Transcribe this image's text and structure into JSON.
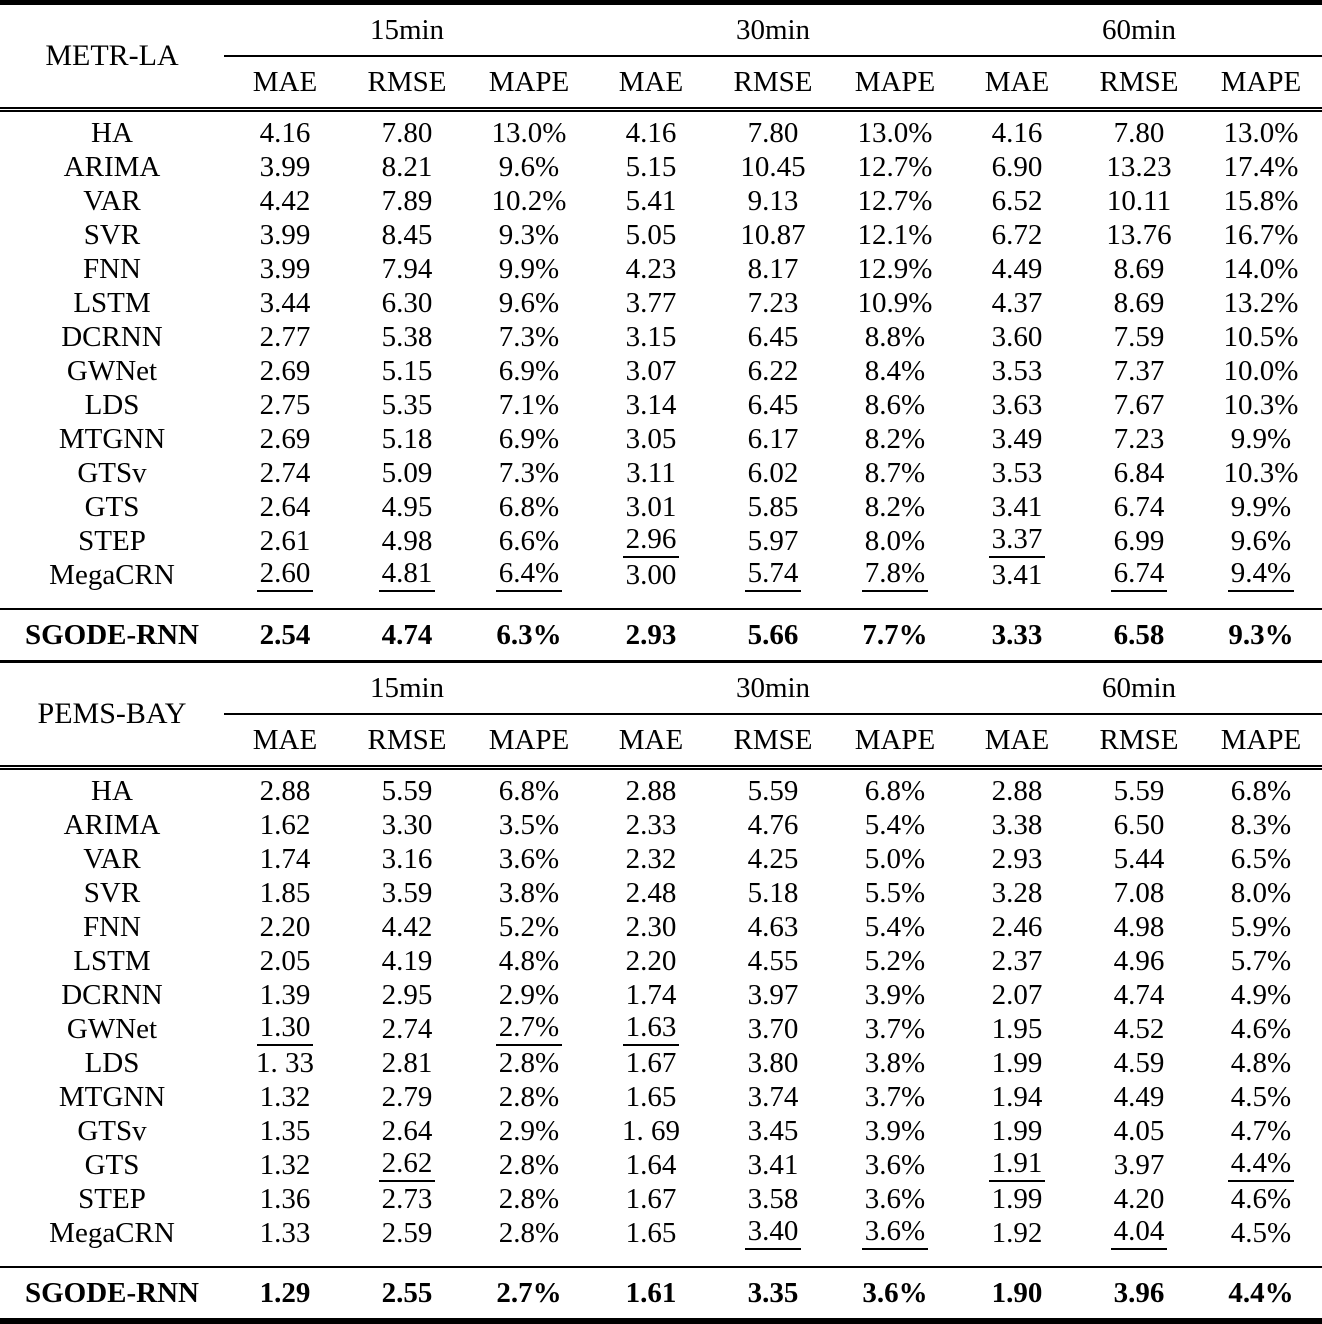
{
  "table": {
    "sections": [
      {
        "dataset": "METR-LA",
        "horizons": [
          "15min",
          "30min",
          "60min"
        ],
        "metrics": [
          "MAE",
          "RMSE",
          "MAPE"
        ],
        "rows": [
          {
            "model": "HA",
            "values": [
              "4.16",
              "7.80",
              "13.0%",
              "4.16",
              "7.80",
              "13.0%",
              "4.16",
              "7.80",
              "13.0%"
            ],
            "underline": []
          },
          {
            "model": "ARIMA",
            "values": [
              "3.99",
              "8.21",
              "9.6%",
              "5.15",
              "10.45",
              "12.7%",
              "6.90",
              "13.23",
              "17.4%"
            ],
            "underline": []
          },
          {
            "model": "VAR",
            "values": [
              "4.42",
              "7.89",
              "10.2%",
              "5.41",
              "9.13",
              "12.7%",
              "6.52",
              "10.11",
              "15.8%"
            ],
            "underline": []
          },
          {
            "model": "SVR",
            "values": [
              "3.99",
              "8.45",
              "9.3%",
              "5.05",
              "10.87",
              "12.1%",
              "6.72",
              "13.76",
              "16.7%"
            ],
            "underline": []
          },
          {
            "model": "FNN",
            "values": [
              "3.99",
              "7.94",
              "9.9%",
              "4.23",
              "8.17",
              "12.9%",
              "4.49",
              "8.69",
              "14.0%"
            ],
            "underline": []
          },
          {
            "model": "LSTM",
            "values": [
              "3.44",
              "6.30",
              "9.6%",
              "3.77",
              "7.23",
              "10.9%",
              "4.37",
              "8.69",
              "13.2%"
            ],
            "underline": []
          },
          {
            "model": "DCRNN",
            "values": [
              "2.77",
              "5.38",
              "7.3%",
              "3.15",
              "6.45",
              "8.8%",
              "3.60",
              "7.59",
              "10.5%"
            ],
            "underline": []
          },
          {
            "model": "GWNet",
            "values": [
              "2.69",
              "5.15",
              "6.9%",
              "3.07",
              "6.22",
              "8.4%",
              "3.53",
              "7.37",
              "10.0%"
            ],
            "underline": []
          },
          {
            "model": "LDS",
            "values": [
              "2.75",
              "5.35",
              "7.1%",
              "3.14",
              "6.45",
              "8.6%",
              "3.63",
              "7.67",
              "10.3%"
            ],
            "underline": []
          },
          {
            "model": "MTGNN",
            "values": [
              "2.69",
              "5.18",
              "6.9%",
              "3.05",
              "6.17",
              "8.2%",
              "3.49",
              "7.23",
              "9.9%"
            ],
            "underline": []
          },
          {
            "model": "GTSv",
            "values": [
              "2.74",
              "5.09",
              "7.3%",
              "3.11",
              "6.02",
              "8.7%",
              "3.53",
              "6.84",
              "10.3%"
            ],
            "underline": []
          },
          {
            "model": "GTS",
            "values": [
              "2.64",
              "4.95",
              "6.8%",
              "3.01",
              "5.85",
              "8.2%",
              "3.41",
              "6.74",
              "9.9%"
            ],
            "underline": []
          },
          {
            "model": "STEP",
            "values": [
              "2.61",
              "4.98",
              "6.6%",
              "2.96",
              "5.97",
              "8.0%",
              "3.37",
              "6.99",
              "9.6%"
            ],
            "underline": [
              3,
              6
            ]
          },
          {
            "model": "MegaCRN",
            "values": [
              "2.60",
              "4.81",
              "6.4%",
              "3.00",
              "5.74",
              "7.8%",
              "3.41",
              "6.74",
              "9.4%"
            ],
            "underline": [
              0,
              1,
              2,
              4,
              5,
              7,
              8
            ]
          }
        ],
        "best_row": {
          "model": "SGODE-RNN",
          "values": [
            "2.54",
            "4.74",
            "6.3%",
            "2.93",
            "5.66",
            "7.7%",
            "3.33",
            "6.58",
            "9.3%"
          ]
        }
      },
      {
        "dataset": "PEMS-BAY",
        "horizons": [
          "15min",
          "30min",
          "60min"
        ],
        "metrics": [
          "MAE",
          "RMSE",
          "MAPE"
        ],
        "rows": [
          {
            "model": "HA",
            "values": [
              "2.88",
              "5.59",
              "6.8%",
              "2.88",
              "5.59",
              "6.8%",
              "2.88",
              "5.59",
              "6.8%"
            ],
            "underline": []
          },
          {
            "model": "ARIMA",
            "values": [
              "1.62",
              "3.30",
              "3.5%",
              "2.33",
              "4.76",
              "5.4%",
              "3.38",
              "6.50",
              "8.3%"
            ],
            "underline": []
          },
          {
            "model": "VAR",
            "values": [
              "1.74",
              "3.16",
              "3.6%",
              "2.32",
              "4.25",
              "5.0%",
              "2.93",
              "5.44",
              "6.5%"
            ],
            "underline": []
          },
          {
            "model": "SVR",
            "values": [
              "1.85",
              "3.59",
              "3.8%",
              "2.48",
              "5.18",
              "5.5%",
              "3.28",
              "7.08",
              "8.0%"
            ],
            "underline": []
          },
          {
            "model": "FNN",
            "values": [
              "2.20",
              "4.42",
              "5.2%",
              "2.30",
              "4.63",
              "5.4%",
              "2.46",
              "4.98",
              "5.9%"
            ],
            "underline": []
          },
          {
            "model": "LSTM",
            "values": [
              "2.05",
              "4.19",
              "4.8%",
              "2.20",
              "4.55",
              "5.2%",
              "2.37",
              "4.96",
              "5.7%"
            ],
            "underline": []
          },
          {
            "model": "DCRNN",
            "values": [
              "1.39",
              "2.95",
              "2.9%",
              "1.74",
              "3.97",
              "3.9%",
              "2.07",
              "4.74",
              "4.9%"
            ],
            "underline": []
          },
          {
            "model": "GWNet",
            "values": [
              "1.30",
              "2.74",
              "2.7%",
              "1.63",
              "3.70",
              "3.7%",
              "1.95",
              "4.52",
              "4.6%"
            ],
            "underline": [
              0,
              2,
              3
            ]
          },
          {
            "model": "LDS",
            "values": [
              "1. 33",
              "2.81",
              "2.8%",
              "1.67",
              "3.80",
              "3.8%",
              "1.99",
              "4.59",
              "4.8%"
            ],
            "underline": []
          },
          {
            "model": "MTGNN",
            "values": [
              "1.32",
              "2.79",
              "2.8%",
              "1.65",
              "3.74",
              "3.7%",
              "1.94",
              "4.49",
              "4.5%"
            ],
            "underline": []
          },
          {
            "model": "GTSv",
            "values": [
              "1.35",
              "2.64",
              "2.9%",
              "1. 69",
              "3.45",
              "3.9%",
              "1.99",
              "4.05",
              "4.7%"
            ],
            "underline": []
          },
          {
            "model": "GTS",
            "values": [
              "1.32",
              "2.62",
              "2.8%",
              "1.64",
              "3.41",
              "3.6%",
              "1.91",
              "3.97",
              "4.4%"
            ],
            "underline": [
              1,
              6,
              8
            ]
          },
          {
            "model": "STEP",
            "values": [
              "1.36",
              "2.73",
              "2.8%",
              "1.67",
              "3.58",
              "3.6%",
              "1.99",
              "4.20",
              "4.6%"
            ],
            "underline": []
          },
          {
            "model": "MegaCRN",
            "values": [
              "1.33",
              "2.59",
              "2.8%",
              "1.65",
              "3.40",
              "3.6%",
              "1.92",
              "4.04",
              "4.5%"
            ],
            "underline": [
              4,
              5,
              7
            ]
          }
        ],
        "best_row": {
          "model": "SGODE-RNN",
          "values": [
            "1.29",
            "2.55",
            "2.7%",
            "1.61",
            "3.35",
            "3.6%",
            "1.90",
            "3.96",
            "4.4%"
          ]
        }
      }
    ]
  }
}
